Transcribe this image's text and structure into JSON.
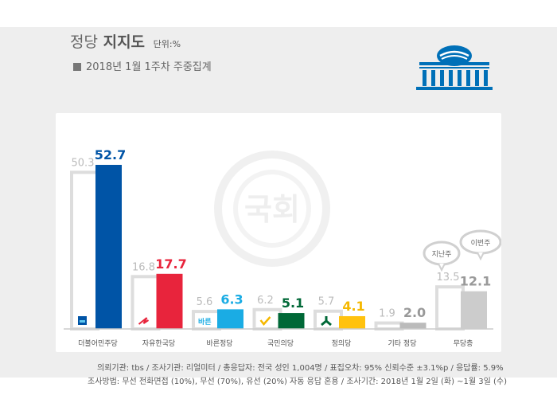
{
  "header": {
    "title_part1": "정당",
    "title_part2": "지지도",
    "unit": "단위:%",
    "subtitle": "2018년 1월 1주차 주중집계"
  },
  "colors": {
    "previous_bar": "#ffffff",
    "previous_bar_border": "#dddddd",
    "previous_value": "#bbbbbb",
    "axis": "#cccccc"
  },
  "chart_data": {
    "type": "bar",
    "categories": [
      "더불어민주당",
      "자유한국당",
      "바른정당",
      "국민의당",
      "정의당",
      "기타 정당",
      "무당층"
    ],
    "series": [
      {
        "name": "지난주",
        "values": [
          50.3,
          16.8,
          5.6,
          6.2,
          5.7,
          1.9,
          13.5
        ]
      },
      {
        "name": "이번주",
        "values": [
          52.7,
          17.7,
          6.3,
          5.1,
          4.1,
          2.0,
          12.1
        ]
      }
    ],
    "current_colors": [
      "#0054a6",
      "#e8243c",
      "#1aace4",
      "#006837",
      "#ffc20e",
      "#bbbbbb",
      "#cccccc"
    ],
    "current_label_colors": [
      "#0054a6",
      "#e8243c",
      "#1aace4",
      "#006837",
      "#f5b800",
      "#999999",
      "#999999"
    ],
    "party_icons": [
      "minjoo-logo-icon",
      "liberty-korea-logo-icon",
      "bareun-logo-icon",
      "people-party-logo-icon",
      "justice-logo-icon",
      "",
      ""
    ],
    "ylim": [
      0,
      55
    ],
    "legend_bubbles": [
      "지난주",
      "이번주"
    ],
    "watermark": "국회"
  },
  "footnotes": {
    "line1": "의뢰기관: tbs / 조사기관: 리얼미터 / 총응답자: 전국 성인 1,004명 / 표집오차: 95% 신뢰수준 ±3.1%p / 응답률: 5.9%",
    "line2": "조사방법: 무선 전화면접 (10%), 무선 (70%), 유선 (20%) 자동 응답 혼용 / 조사기간: 2018년 1월 2일 (화) ~1월 3일 (수)"
  }
}
